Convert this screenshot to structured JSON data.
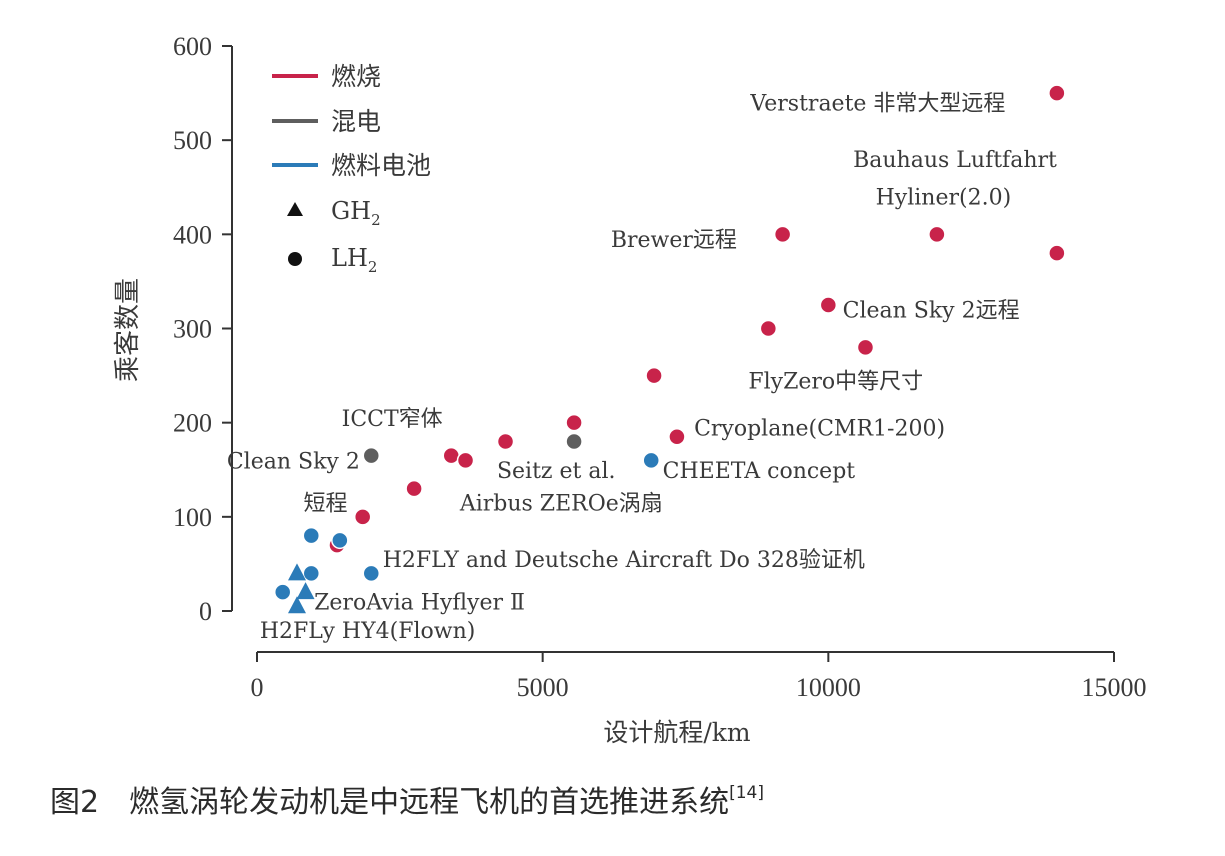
{
  "chart_data": {
    "type": "scatter",
    "xlabel": "设计航程/km",
    "ylabel": "乘客数量",
    "xlim": [
      0,
      15000
    ],
    "ylim": [
      0,
      600
    ],
    "x_ticks": [
      "0",
      "5000",
      "10000",
      "15000"
    ],
    "y_ticks": [
      "0",
      "100",
      "200",
      "300",
      "400",
      "500",
      "600"
    ],
    "grid": false,
    "legend": {
      "placement": "top-left",
      "series": [
        {
          "name": "燃烧",
          "color": "#c8234a"
        },
        {
          "name": "混电",
          "color": "#5e5e5e"
        },
        {
          "name": "燃料电池",
          "color": "#2b7bb8"
        }
      ],
      "markers": [
        {
          "symbol": "triangle",
          "label": "GH",
          "sub": "2"
        },
        {
          "symbol": "circle",
          "label": "LH",
          "sub": "2"
        }
      ]
    },
    "points": [
      {
        "x": 14000,
        "y": 550,
        "series": "燃烧",
        "marker": "circle"
      },
      {
        "x": 14000,
        "y": 380,
        "series": "燃烧",
        "marker": "circle"
      },
      {
        "x": 11900,
        "y": 400,
        "series": "燃烧",
        "marker": "circle"
      },
      {
        "x": 9200,
        "y": 400,
        "series": "燃烧",
        "marker": "circle"
      },
      {
        "x": 10000,
        "y": 325,
        "series": "燃烧",
        "marker": "circle"
      },
      {
        "x": 8950,
        "y": 300,
        "series": "燃烧",
        "marker": "circle"
      },
      {
        "x": 10650,
        "y": 280,
        "series": "燃烧",
        "marker": "circle"
      },
      {
        "x": 6950,
        "y": 250,
        "series": "燃烧",
        "marker": "circle"
      },
      {
        "x": 7350,
        "y": 185,
        "series": "燃烧",
        "marker": "circle"
      },
      {
        "x": 5550,
        "y": 200,
        "series": "燃烧",
        "marker": "circle"
      },
      {
        "x": 4350,
        "y": 180,
        "series": "燃烧",
        "marker": "circle"
      },
      {
        "x": 3400,
        "y": 165,
        "series": "燃烧",
        "marker": "circle"
      },
      {
        "x": 3650,
        "y": 160,
        "series": "燃烧",
        "marker": "circle"
      },
      {
        "x": 2750,
        "y": 130,
        "series": "燃烧",
        "marker": "circle"
      },
      {
        "x": 1850,
        "y": 100,
        "series": "燃烧",
        "marker": "circle"
      },
      {
        "x": 1400,
        "y": 70,
        "series": "燃烧",
        "marker": "circle"
      },
      {
        "x": 5550,
        "y": 180,
        "series": "混电",
        "marker": "circle"
      },
      {
        "x": 2000,
        "y": 165,
        "series": "混电",
        "marker": "circle"
      },
      {
        "x": 6900,
        "y": 160,
        "series": "燃料电池",
        "marker": "circle"
      },
      {
        "x": 950,
        "y": 80,
        "series": "燃料电池",
        "marker": "circle"
      },
      {
        "x": 1450,
        "y": 75,
        "series": "燃料电池",
        "marker": "circle"
      },
      {
        "x": 2000,
        "y": 40,
        "series": "燃料电池",
        "marker": "circle"
      },
      {
        "x": 950,
        "y": 40,
        "series": "燃料电池",
        "marker": "circle"
      },
      {
        "x": 450,
        "y": 20,
        "series": "燃料电池",
        "marker": "circle"
      },
      {
        "x": 700,
        "y": 40,
        "series": "燃料电池",
        "marker": "triangle"
      },
      {
        "x": 850,
        "y": 20,
        "series": "燃料电池",
        "marker": "triangle"
      },
      {
        "x": 700,
        "y": 5,
        "series": "燃料电池",
        "marker": "triangle"
      }
    ],
    "annotations": [
      {
        "text": "Verstraete 非常大型远程",
        "x": 13100,
        "y": 540,
        "anchor": "end"
      },
      {
        "text": "Bauhaus Luftfahrt",
        "x": 14000,
        "y": 480,
        "anchor": "end"
      },
      {
        "text": "Hyliner(2.0)",
        "x": 13200,
        "y": 440,
        "anchor": "end"
      },
      {
        "text": "Brewer远程",
        "x": 8400,
        "y": 395,
        "anchor": "end"
      },
      {
        "text": "Clean Sky 2远程",
        "x": 10250,
        "y": 320,
        "anchor": "start"
      },
      {
        "text": "FlyZero中等尺寸",
        "x": 8600,
        "y": 245,
        "anchor": "start"
      },
      {
        "text": "Cryoplane(CMR1-200)",
        "x": 7650,
        "y": 195,
        "anchor": "start"
      },
      {
        "text": "CHEETA concept",
        "x": 7100,
        "y": 150,
        "anchor": "start"
      },
      {
        "text": "Seitz et al.",
        "x": 4200,
        "y": 150,
        "anchor": "start"
      },
      {
        "text": "Airbus ZEROe涡扇",
        "x": 3550,
        "y": 115,
        "anchor": "start"
      },
      {
        "text": "ICCT窄体",
        "x": 3250,
        "y": 205,
        "anchor": "end"
      },
      {
        "text": "Clean Sky 2",
        "x": 1800,
        "y": 160,
        "anchor": "end"
      },
      {
        "text": "短程",
        "x": 1200,
        "y": 115,
        "anchor": "middle"
      },
      {
        "text": "H2FLY and Deutsche Aircraft Do 328验证机",
        "x": 2200,
        "y": 55,
        "anchor": "start"
      },
      {
        "text": "ZeroAvia Hyflyer Ⅱ",
        "x": 1000,
        "y": 10,
        "anchor": "start"
      },
      {
        "text": "H2FLy HY4(Flown)",
        "x": 50,
        "y": -20,
        "anchor": "start"
      }
    ]
  },
  "caption": {
    "prefix": "图2",
    "text": "燃氢涡轮发动机是中远程飞机的首选推进系统",
    "ref": "[14]"
  }
}
